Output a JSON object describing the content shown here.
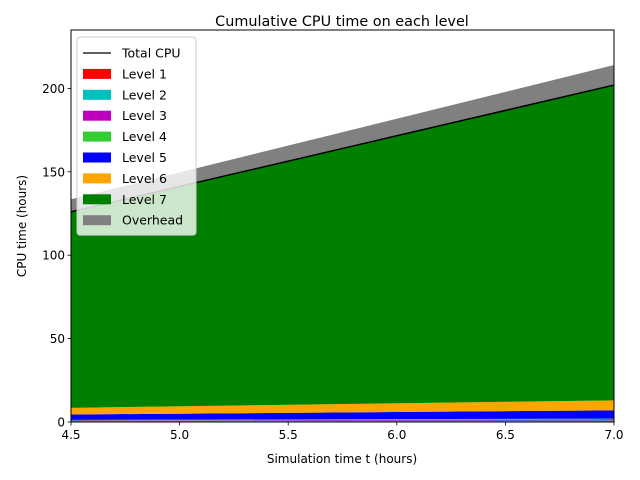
{
  "chart_data": {
    "type": "area",
    "title": "Cumulative CPU time on each level",
    "xlabel": "Simulation time t (hours)",
    "ylabel": "CPU time (hours)",
    "x": [
      4.5,
      7.0
    ],
    "xlim": [
      4.5,
      7.0
    ],
    "ylim": [
      0,
      235
    ],
    "xticks": [
      4.5,
      5.0,
      5.5,
      6.0,
      6.5,
      7.0
    ],
    "xtick_labels": [
      "4.5",
      "5.0",
      "5.5",
      "6.0",
      "6.5",
      "7.0"
    ],
    "yticks": [
      0,
      50,
      100,
      150,
      200
    ],
    "ytick_labels": [
      "0",
      "50",
      "100",
      "150",
      "200"
    ],
    "stacked": true,
    "series": [
      {
        "name": "Level 1",
        "color": "#ff0000",
        "values": [
          0.3,
          0.5
        ]
      },
      {
        "name": "Level 2",
        "color": "#00bfbf",
        "values": [
          0.3,
          0.5
        ]
      },
      {
        "name": "Level 3",
        "color": "#bf00bf",
        "values": [
          0.3,
          0.5
        ]
      },
      {
        "name": "Level 4",
        "color": "#32cd32",
        "values": [
          0.4,
          0.5
        ]
      },
      {
        "name": "Level 5",
        "color": "#0000ff",
        "values": [
          3.2,
          5.0
        ]
      },
      {
        "name": "Level 6",
        "color": "#ffa500",
        "values": [
          4.0,
          6.0
        ]
      },
      {
        "name": "Level 7",
        "color": "#008000",
        "values": [
          117.5,
          189.0
        ]
      },
      {
        "name": "Overhead",
        "color": "#808080",
        "values": [
          7.5,
          12.0
        ]
      }
    ],
    "total_line": {
      "name": "Total CPU",
      "color": "#000000",
      "values": [
        126,
        202
      ]
    },
    "legend_position": "upper-left",
    "grid": false
  }
}
